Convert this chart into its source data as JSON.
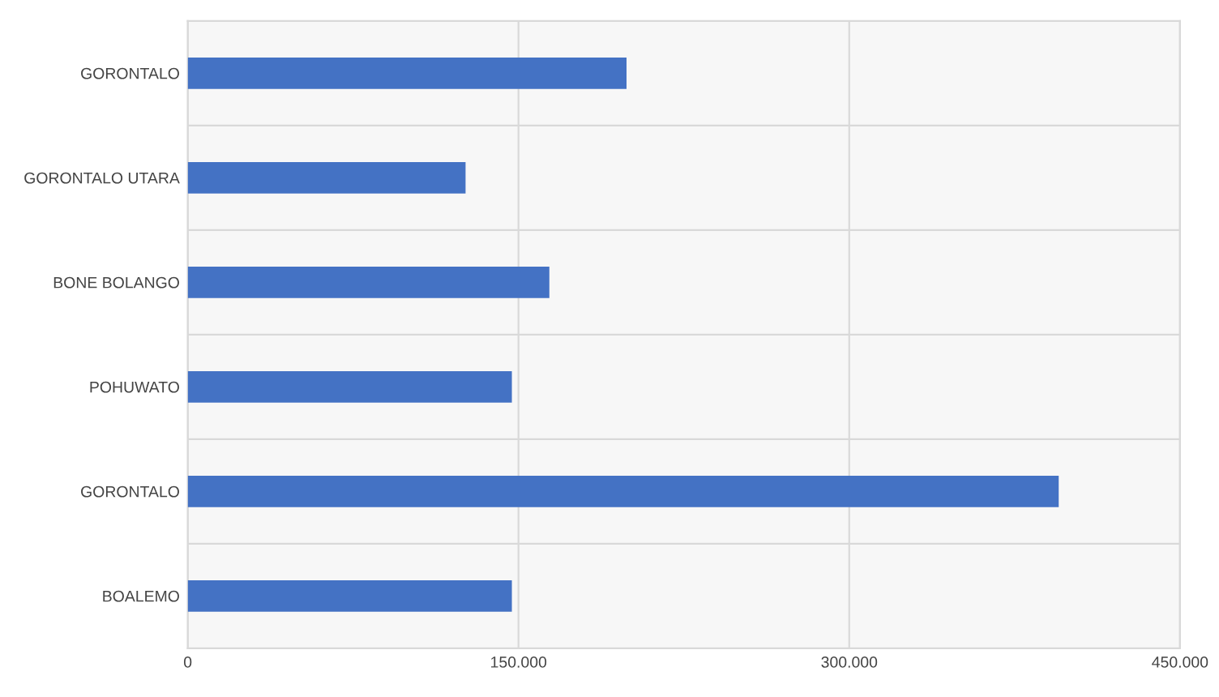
{
  "chart_data": {
    "type": "bar",
    "orientation": "horizontal",
    "categories": [
      "GORONTALO",
      "GORONTALO UTARA",
      "BONE BOLANGO",
      "POHUWATO",
      "GORONTALO",
      "BOALEMO"
    ],
    "values": [
      199000,
      126000,
      164000,
      147000,
      395000,
      147000
    ],
    "color": "#4472c4",
    "xlim": [
      0,
      450000
    ],
    "xticks": [
      0,
      {
        "value": 150000,
        "label": "150.000"
      },
      {
        "value": 300000,
        "label": "300.000"
      },
      {
        "value": 450000,
        "label": "450.000"
      }
    ],
    "grid": true
  }
}
